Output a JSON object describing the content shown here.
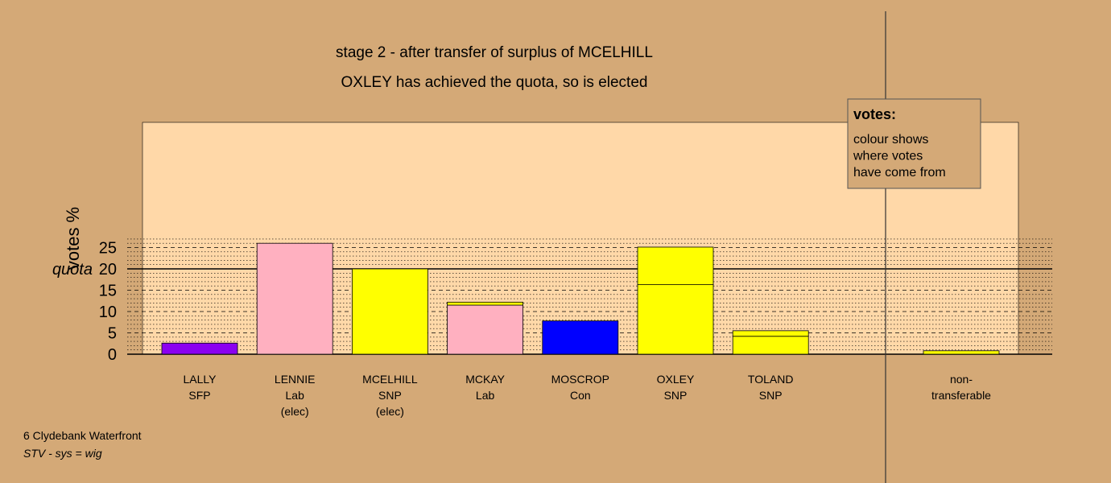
{
  "chart_data": {
    "type": "bar",
    "stacked": true,
    "title_lines": [
      "stage 2 - after transfer of surplus of MCELHILL",
      "OXLEY has achieved the quota, so is elected"
    ],
    "ylabel": "votes %",
    "ylim": [
      0,
      27
    ],
    "yticks": [
      0,
      5,
      10,
      15,
      20,
      25
    ],
    "quota": {
      "value": 20,
      "label": "quota"
    },
    "grid": true,
    "categories": [
      {
        "name": "LALLY",
        "party": "SFP",
        "note": ""
      },
      {
        "name": "LENNIE",
        "party": "Lab",
        "note": "(elec)"
      },
      {
        "name": "MCELHILL",
        "party": "SNP",
        "note": "(elec)"
      },
      {
        "name": "MCKAY",
        "party": "Lab",
        "note": ""
      },
      {
        "name": "MOSCROP",
        "party": "Con",
        "note": ""
      },
      {
        "name": "OXLEY",
        "party": "SNP",
        "note": ""
      },
      {
        "name": "TOLAND",
        "party": "SNP",
        "note": ""
      }
    ],
    "bars": [
      {
        "segments": [
          {
            "value": 2.6,
            "color": "#8B00F0"
          }
        ]
      },
      {
        "segments": [
          {
            "value": 26.0,
            "color": "#FFB0C0"
          }
        ]
      },
      {
        "segments": [
          {
            "value": 20.0,
            "color": "#FFFF00"
          }
        ]
      },
      {
        "segments": [
          {
            "value": 11.5,
            "color": "#FFB0C0"
          },
          {
            "value": 0.7,
            "color": "#FFFF00"
          }
        ]
      },
      {
        "segments": [
          {
            "value": 7.8,
            "color": "#0000FF"
          }
        ]
      },
      {
        "segments": [
          {
            "value": 16.3,
            "color": "#FFFF00"
          },
          {
            "value": 8.8,
            "color": "#FFFF00"
          }
        ]
      },
      {
        "segments": [
          {
            "value": 4.2,
            "color": "#FFFF00"
          },
          {
            "value": 1.3,
            "color": "#FFFF00"
          }
        ]
      }
    ],
    "non_transferable": {
      "label_lines": [
        "non-",
        "transferable"
      ],
      "value": 0.8,
      "color": "#FFFF00"
    },
    "legend": {
      "title": "votes:",
      "lines": [
        "colour shows",
        "where votes",
        "have come from"
      ],
      "position": "top-right"
    },
    "colors": {
      "background": "#D4A977",
      "plot_area": "#FFD8A8"
    }
  },
  "footer": {
    "line1": "6 Clydebank Waterfront",
    "line2": "STV - sys = wig"
  }
}
